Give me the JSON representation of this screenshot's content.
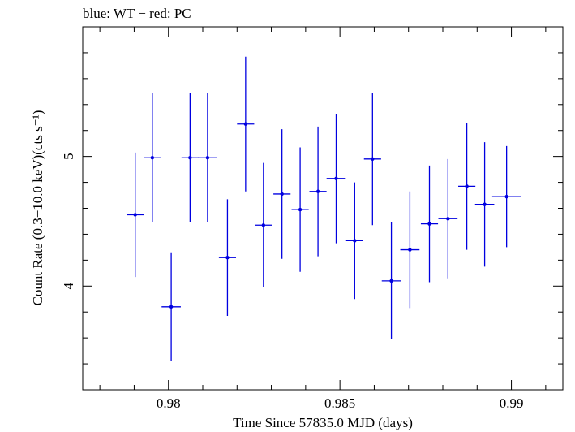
{
  "chart_data": {
    "type": "scatter",
    "title": "blue: WT − red: PC",
    "xlabel": "Time Since 57835.0 MJD (days)",
    "ylabel": "Count Rate (0.3−10.0 keV)(cts s⁻¹)",
    "xlim": [
      0.9775,
      0.9915
    ],
    "ylim": [
      3.2,
      6.0
    ],
    "x_ticks": [
      "0.98",
      "0.985",
      "0.99"
    ],
    "y_ticks": [
      "4",
      "5"
    ],
    "grid": false,
    "colors": {
      "WT": "#0000e0",
      "PC": "#e00000"
    },
    "series": [
      {
        "name": "WT",
        "color": "#0000e0",
        "points": [
          {
            "x": 0.97903,
            "xerr": 0.00025,
            "y": 4.55,
            "yerr": 0.48
          },
          {
            "x": 0.97953,
            "xerr": 0.00025,
            "y": 4.99,
            "yerr": 0.5
          },
          {
            "x": 0.98008,
            "xerr": 0.00028,
            "y": 3.84,
            "yerr": 0.42
          },
          {
            "x": 0.98063,
            "xerr": 0.00025,
            "y": 4.99,
            "yerr": 0.5
          },
          {
            "x": 0.98114,
            "xerr": 0.00028,
            "y": 4.99,
            "yerr": 0.5
          },
          {
            "x": 0.98172,
            "xerr": 0.00025,
            "y": 4.22,
            "yerr": 0.45
          },
          {
            "x": 0.98225,
            "xerr": 0.00025,
            "y": 5.25,
            "yerr": 0.52
          },
          {
            "x": 0.98277,
            "xerr": 0.00025,
            "y": 4.47,
            "yerr": 0.48
          },
          {
            "x": 0.98331,
            "xerr": 0.00025,
            "y": 4.71,
            "yerr": 0.5
          },
          {
            "x": 0.98384,
            "xerr": 0.00025,
            "y": 4.59,
            "yerr": 0.48
          },
          {
            "x": 0.98436,
            "xerr": 0.00025,
            "y": 4.73,
            "yerr": 0.5
          },
          {
            "x": 0.98489,
            "xerr": 0.00028,
            "y": 4.83,
            "yerr": 0.5
          },
          {
            "x": 0.98543,
            "xerr": 0.00025,
            "y": 4.35,
            "yerr": 0.45
          },
          {
            "x": 0.98595,
            "xerr": 0.00025,
            "y": 4.98,
            "yerr": 0.51
          },
          {
            "x": 0.9865,
            "xerr": 0.00028,
            "y": 4.04,
            "yerr": 0.45
          },
          {
            "x": 0.98704,
            "xerr": 0.00028,
            "y": 4.28,
            "yerr": 0.45
          },
          {
            "x": 0.98761,
            "xerr": 0.00025,
            "y": 4.48,
            "yerr": 0.45
          },
          {
            "x": 0.98815,
            "xerr": 0.00028,
            "y": 4.52,
            "yerr": 0.46
          },
          {
            "x": 0.9887,
            "xerr": 0.00025,
            "y": 4.77,
            "yerr": 0.49
          },
          {
            "x": 0.98922,
            "xerr": 0.00028,
            "y": 4.63,
            "yerr": 0.48
          },
          {
            "x": 0.98986,
            "xerr": 0.00042,
            "y": 4.69,
            "yerr": 0.39
          }
        ]
      }
    ]
  }
}
